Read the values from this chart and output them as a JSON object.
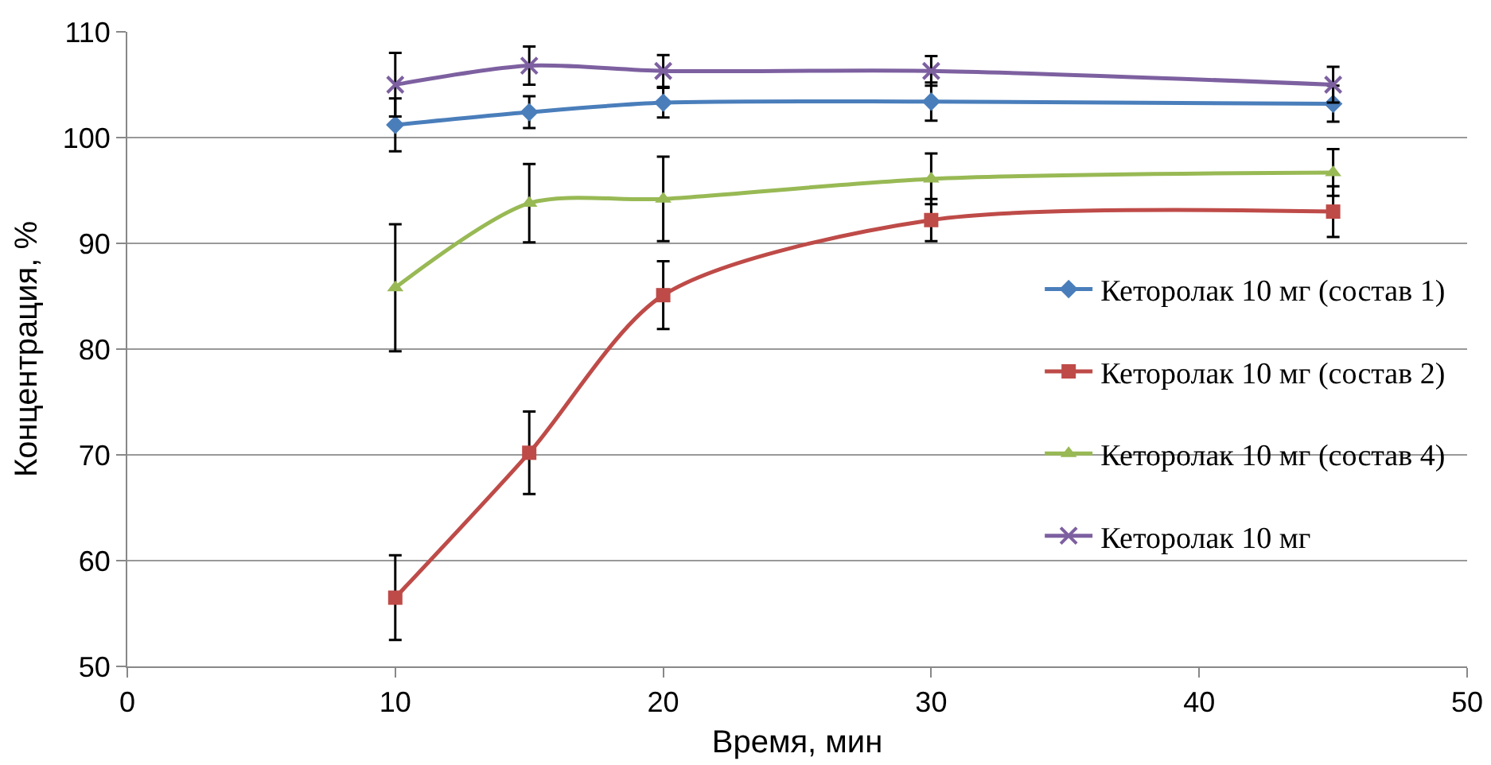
{
  "chart_data": {
    "type": "line",
    "xlabel": "Время, мин",
    "ylabel": "Концентрация, %",
    "x": [
      10,
      15,
      20,
      30,
      45
    ],
    "xlim": [
      0,
      50
    ],
    "xticks": [
      0,
      10,
      20,
      30,
      40,
      50
    ],
    "ylim": [
      50,
      110
    ],
    "yticks": [
      50,
      60,
      70,
      80,
      90,
      100,
      110
    ],
    "grid": "y",
    "legend": "right",
    "line_style": "solid",
    "series": [
      {
        "name": "Кеторолак 10 мг (состав 1)",
        "color": "#4a7ebb",
        "marker": "diamond",
        "values": [
          101.2,
          102.4,
          103.3,
          103.4,
          103.2
        ],
        "errors": [
          2.5,
          1.5,
          1.4,
          1.8,
          1.7
        ]
      },
      {
        "name": "Кеторолак 10 мг (состав 2)",
        "color": "#be4b48",
        "marker": "square",
        "values": [
          56.5,
          70.2,
          85.1,
          92.2,
          93.0
        ],
        "errors": [
          4,
          3.9,
          3.2,
          2,
          2.4
        ]
      },
      {
        "name": "Кеторолак 10 мг (состав 4)",
        "color": "#98b954",
        "marker": "triangle",
        "values": [
          85.8,
          93.8,
          94.2,
          96.1,
          96.7
        ],
        "errors": [
          6,
          3.7,
          4,
          2.4,
          2.2
        ]
      },
      {
        "name": "Кеторолак 10 мг",
        "color": "#7d60a0",
        "marker": "cross",
        "values": [
          105.0,
          106.8,
          106.3,
          106.3,
          105.0
        ],
        "errors": [
          3,
          1.8,
          1.5,
          1.4,
          1.7
        ]
      }
    ]
  }
}
